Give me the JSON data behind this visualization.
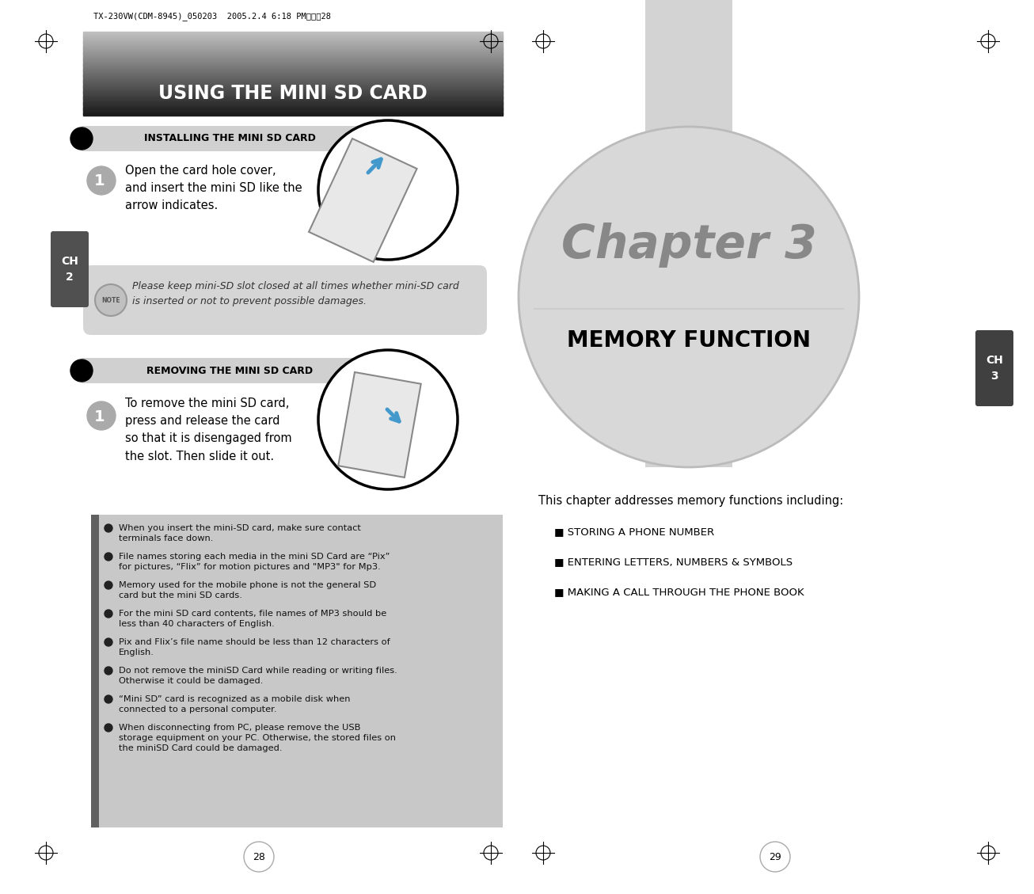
{
  "bg_color": "#ffffff",
  "left_page": {
    "header_text": "TX-230VW(CDM-8945)_050203  2005.2.4 6:18 PM㍿이직28",
    "title": "USING THE MINI SD CARD",
    "section1_title": "INSTALLING THE MINI SD CARD",
    "section1_text": "Open the card hole cover,\nand insert the mini SD like the\narrow indicates.",
    "note_text": "Please keep mini-SD slot closed at all times whether mini-SD card\nis inserted or not to prevent possible damages.",
    "section2_title": "REMOVING THE MINI SD CARD",
    "section2_text": "To remove the mini SD card,\npress and release the card\nso that it is disengaged from\nthe slot. Then slide it out.",
    "bullet_points": [
      "When you insert the mini-SD card, make sure contact\nterminals face down.",
      "File names storing each media in the mini SD Card are “Pix”\nfor pictures, “Flix” for motion pictures and \"MP3\" for Mp3.",
      "Memory used for the mobile phone is not the general SD\ncard but the mini SD cards.",
      "For the mini SD card contents, file names of MP3 should be\nless than 40 characters of English.",
      "Pix and Flix’s file name should be less than 12 characters of\nEnglish.",
      "Do not remove the miniSD Card while reading or writing files.\nOtherwise it could be damaged.",
      "“Mini SD” card is recognized as a mobile disk when\nconnected to a personal computer.",
      "When disconnecting from PC, please remove the USB\nstorage equipment on your PC. Otherwise, the stored files on\nthe miniSD Card could be damaged."
    ],
    "page_number": "28",
    "ch_tab_text": "CH\n2",
    "tab_color": "#505050"
  },
  "right_page": {
    "chapter_title": "Chapter 3",
    "chapter_subtitle": "MEMORY FUNCTION",
    "bar_color": "#d3d3d3",
    "circle_color": "#d8d8d8",
    "circle_border": "#bbbbbb",
    "intro_text": "This chapter addresses memory functions including:",
    "toc_items": [
      "■ STORING A PHONE NUMBER",
      "■ ENTERING LETTERS, NUMBERS & SYMBOLS",
      "■ MAKING A CALL THROUGH THE PHONE BOOK"
    ],
    "page_number": "29",
    "ch_tab_text": "CH\n3",
    "tab_color": "#404040"
  }
}
